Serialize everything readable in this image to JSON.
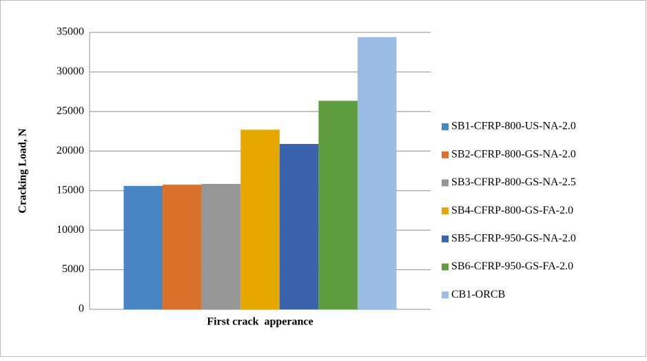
{
  "chart_data": {
    "type": "bar",
    "y_label": "Cracking Load, N",
    "categories": [
      "First crack  apperance"
    ],
    "series": [
      {
        "name": "SB1-CFRP-800-US-NA-2.0",
        "color": "#4a86c5",
        "values": [
          15600
        ]
      },
      {
        "name": "SB2-CFRP-800-GS-NA-2.0",
        "color": "#d9712b",
        "values": [
          15750
        ]
      },
      {
        "name": "SB3-CFRP-800-GS-NA-2.5",
        "color": "#969696",
        "values": [
          15850
        ]
      },
      {
        "name": "SB4-CFRP-800-GS-FA-2.0",
        "color": "#e6a700",
        "values": [
          22700
        ]
      },
      {
        "name": "SB5-CFRP-950-GS-NA-2.0",
        "color": "#3a62ad",
        "values": [
          20900
        ]
      },
      {
        "name": "SB6-CFRP-950-GS-FA-2.0",
        "color": "#5f9c3f",
        "values": [
          26350
        ]
      },
      {
        "name": "CB1-ORCB",
        "color": "#9cbde3",
        "values": [
          34400
        ]
      }
    ],
    "ylim": [
      0,
      35000
    ],
    "yticks": [
      0,
      5000,
      10000,
      15000,
      20000,
      25000,
      30000,
      35000
    ],
    "grid": true,
    "legend": "right"
  }
}
